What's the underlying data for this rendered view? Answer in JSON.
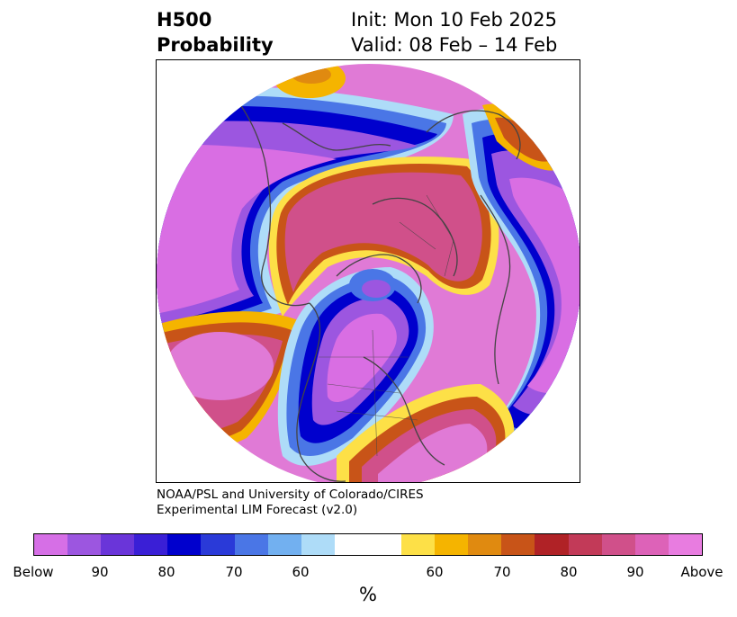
{
  "title": {
    "line1": "H500",
    "line2": "Probability",
    "init": "Init: Mon 10 Feb 2025",
    "valid": "Valid: 08 Feb – 14 Feb"
  },
  "credit": {
    "line1": "NOAA/PSL and University of Colorado/CIRES",
    "line2": "Experimental LIM Forecast (v2.0)"
  },
  "colorbar": {
    "colors": [
      "#d66fe6",
      "#9c56e0",
      "#6a35d9",
      "#3a1fd6",
      "#0000cd",
      "#2a3ad8",
      "#4a76e6",
      "#72b0f0",
      "#aedcf8",
      "#ffffff",
      "#ffffff",
      "#fde047",
      "#f5b400",
      "#e08a10",
      "#c85418",
      "#b02226",
      "#c23a58",
      "#d0508a",
      "#dd62b8",
      "#e87ce0"
    ],
    "labels": [
      "Below",
      "90",
      "80",
      "70",
      "60",
      "60",
      "70",
      "80",
      "90",
      "Above"
    ],
    "unit": "%"
  },
  "map": {
    "projection": "north-polar-stereographic",
    "palette": {
      "below_strong": "#d96ee3",
      "below_mid": "#9c56e0",
      "below_weak": "#3a1fd6",
      "below_edge": "#4a76e6",
      "below_faint": "#aedcf8",
      "above_faint": "#fde047",
      "above_weak": "#f5b400",
      "above_mid": "#c85418",
      "above_strong": "#d0508a",
      "above_max": "#e07ad6",
      "land_lines": "#444444"
    }
  }
}
